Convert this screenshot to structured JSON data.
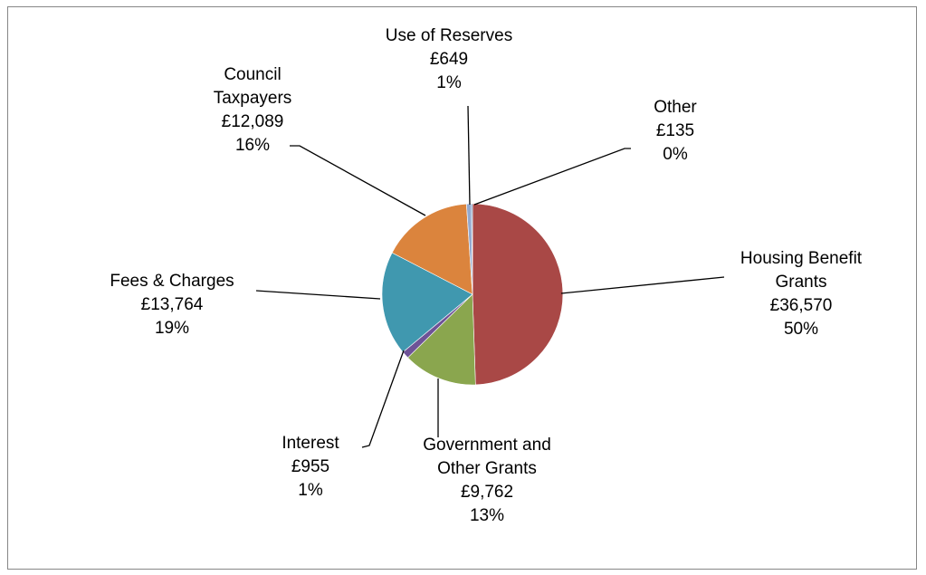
{
  "chart_data": {
    "type": "pie",
    "title": "",
    "currency": "£",
    "slices": [
      {
        "label": "Housing Benefit Grants",
        "label_lines": [
          "Housing Benefit",
          "Grants"
        ],
        "value": 36570,
        "value_text": "£36,570",
        "percent_text": "50%",
        "color": "#A94846"
      },
      {
        "label": "Government and Other Grants",
        "label_lines": [
          "Government and",
          "Other Grants"
        ],
        "value": 9762,
        "value_text": "£9,762",
        "percent_text": "13%",
        "color": "#8AA64E"
      },
      {
        "label": "Interest",
        "label_lines": [
          "Interest"
        ],
        "value": 955,
        "value_text": "£955",
        "percent_text": "1%",
        "color": "#6E5397"
      },
      {
        "label": "Fees & Charges",
        "label_lines": [
          "Fees & Charges"
        ],
        "value": 13764,
        "value_text": "£13,764",
        "percent_text": "19%",
        "color": "#4098AF"
      },
      {
        "label": "Council Taxpayers",
        "label_lines": [
          "Council",
          "Taxpayers"
        ],
        "value": 12089,
        "value_text": "£12,089",
        "percent_text": "16%",
        "color": "#DB843D"
      },
      {
        "label": "Use of Reserves",
        "label_lines": [
          "Use of Reserves"
        ],
        "value": 649,
        "value_text": "£649",
        "percent_text": "1%",
        "color": "#93A9CF"
      },
      {
        "label": "Other",
        "label_lines": [
          "Other"
        ],
        "value": 135,
        "value_text": "£135",
        "percent_text": "0%",
        "color": "#4573A7"
      }
    ]
  }
}
